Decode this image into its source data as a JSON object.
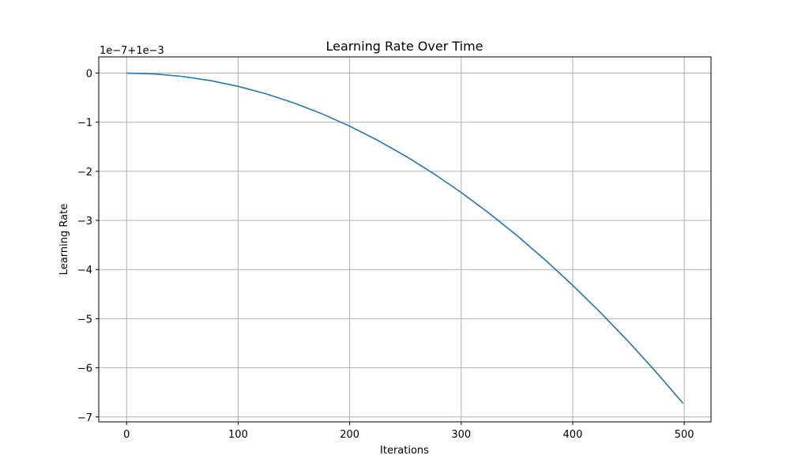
{
  "chart_data": {
    "type": "line",
    "title": "Learning Rate Over Time",
    "xlabel": "Iterations",
    "ylabel": "Learning Rate",
    "y_offset_label": "1e−7+1e−3",
    "xlim": [
      -25,
      524
    ],
    "ylim": [
      -7.1,
      0.33
    ],
    "grid": true,
    "x_ticks": [
      0,
      100,
      200,
      300,
      400,
      500
    ],
    "x_tick_labels": [
      "0",
      "100",
      "200",
      "300",
      "400",
      "500"
    ],
    "y_ticks": [
      0,
      -1,
      -2,
      -3,
      -4,
      -5,
      -6,
      -7
    ],
    "y_tick_labels": [
      "0",
      "−1",
      "−2",
      "−3",
      "−4",
      "−5",
      "−6",
      "−7"
    ],
    "series": [
      {
        "color": "#1f77b4",
        "x": [
          0,
          25,
          50,
          75,
          100,
          125,
          150,
          175,
          200,
          225,
          250,
          275,
          300,
          325,
          350,
          375,
          400,
          425,
          450,
          475,
          499
        ],
        "y": [
          0,
          -0.017,
          -0.068,
          -0.152,
          -0.27,
          -0.422,
          -0.608,
          -0.827,
          -1.08,
          -1.367,
          -1.688,
          -2.042,
          -2.43,
          -2.852,
          -3.307,
          -3.797,
          -4.32,
          -4.877,
          -5.467,
          -6.092,
          -6.724
        ]
      }
    ]
  }
}
